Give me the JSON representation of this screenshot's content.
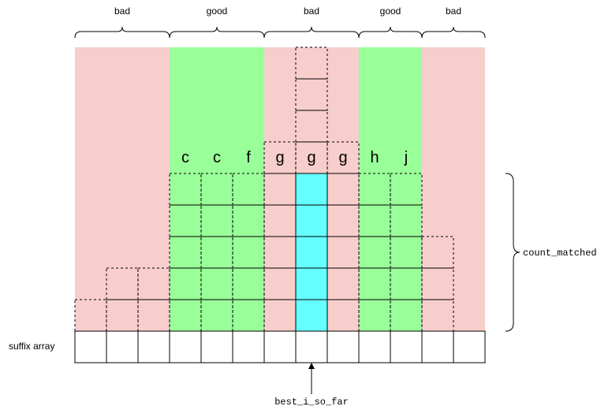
{
  "region_labels": [
    "bad",
    "good",
    "bad",
    "good",
    "bad"
  ],
  "region_kinds": [
    "bad",
    "good",
    "bad",
    "good",
    "bad"
  ],
  "region_spans": [
    [
      0,
      3
    ],
    [
      3,
      6
    ],
    [
      6,
      9
    ],
    [
      9,
      11
    ],
    [
      11,
      13
    ]
  ],
  "column_letters": [
    "",
    "",
    "",
    "c",
    "c",
    "f",
    "g",
    "g",
    "g",
    "h",
    "j",
    "",
    ""
  ],
  "column_heights": [
    1,
    2,
    2,
    5,
    5,
    5,
    6,
    9,
    6,
    5,
    5,
    3,
    0
  ],
  "dashed_above_letters": [
    0,
    0,
    0,
    0,
    0,
    0,
    1,
    4,
    1,
    0,
    0,
    0,
    0
  ],
  "highlight_column": 7,
  "suffix_array_label": "suffix array",
  "count_matched_label": "count_matched",
  "best_label": "best_i_so_far",
  "colors": {
    "bad": "#f8cecc",
    "good": "#99ff99",
    "highlight": "#66ffff",
    "stroke": "#000000"
  }
}
